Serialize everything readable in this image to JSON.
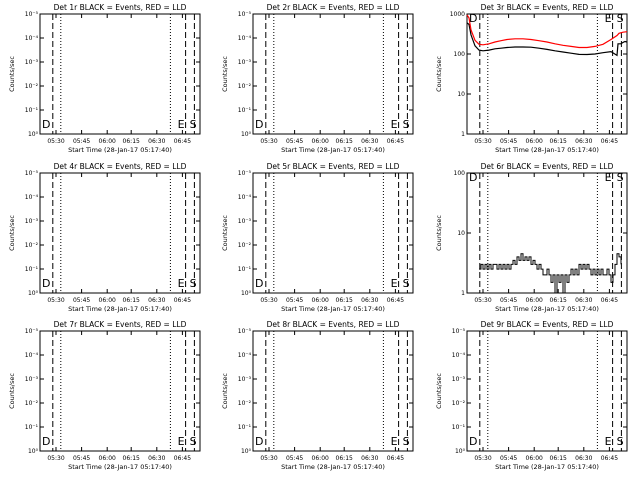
{
  "chart_data": [
    {
      "type": "line",
      "title": "Det 1r BLACK = Events, RED = LLD",
      "xlabel": "Start Time (28-Jan-17 05:17:40)",
      "ylabel": "Counts/sec",
      "yscale": "log",
      "yticks": [
        "10⁰",
        "10⁻¹",
        "10⁻²",
        "10⁻³",
        "10⁻⁴",
        "10⁻⁵"
      ],
      "xticks": [
        "05:30",
        "05:45",
        "06:00",
        "06:15",
        "06:30",
        "06:45"
      ],
      "markers": [
        "D",
        "E",
        "S"
      ],
      "series": []
    },
    {
      "type": "line",
      "title": "Det 2r BLACK = Events, RED = LLD",
      "xlabel": "Start Time (28-Jan-17 05:17:40)",
      "ylabel": "Counts/sec",
      "yscale": "log",
      "yticks": [
        "10⁰",
        "10⁻¹",
        "10⁻²",
        "10⁻³",
        "10⁻⁴",
        "10⁻⁵"
      ],
      "xticks": [
        "05:30",
        "05:45",
        "06:00",
        "06:15",
        "06:30",
        "06:45"
      ],
      "markers": [
        "D",
        "E",
        "S"
      ],
      "series": []
    },
    {
      "type": "line",
      "title": "Det 3r BLACK = Events, RED = LLD",
      "xlabel": "Start Time (28-Jan-17 05:17:40)",
      "ylabel": "Counts/sec",
      "yscale": "log",
      "yticks": [
        "1000",
        "100",
        "10",
        "1"
      ],
      "xticks": [
        "05:30",
        "05:45",
        "06:00",
        "06:15",
        "06:30",
        "06:45"
      ],
      "markers": [
        "D",
        "E",
        "S"
      ],
      "series": [
        {
          "color": "#000000",
          "x": [
            0,
            1,
            2,
            4,
            6,
            8,
            11,
            14,
            17,
            20,
            24,
            28,
            32,
            36,
            40,
            44,
            48,
            52,
            56,
            60,
            64,
            68,
            72,
            75,
            75.5,
            77,
            78,
            79,
            80
          ],
          "y": [
            600,
            550,
            300,
            160,
            125,
            120,
            125,
            135,
            140,
            145,
            150,
            150,
            148,
            140,
            130,
            120,
            112,
            105,
            98,
            97,
            100,
            108,
            115,
            92,
            180,
            180,
            195,
            205,
            200
          ]
        },
        {
          "color": "#ff0000",
          "x": [
            0,
            1,
            2,
            4,
            6,
            8,
            11,
            14,
            17,
            20,
            24,
            28,
            32,
            36,
            40,
            44,
            48,
            52,
            56,
            60,
            64,
            68,
            72,
            75,
            76,
            78,
            80
          ],
          "y": [
            950,
            800,
            400,
            220,
            175,
            170,
            180,
            200,
            215,
            230,
            240,
            240,
            230,
            215,
            200,
            180,
            165,
            155,
            145,
            145,
            155,
            175,
            230,
            290,
            330,
            350,
            360
          ]
        }
      ]
    },
    {
      "type": "line",
      "title": "Det 4r BLACK = Events, RED = LLD",
      "xlabel": "Start Time (28-Jan-17 05:17:40)",
      "ylabel": "Counts/sec",
      "yscale": "log",
      "yticks": [
        "10⁰",
        "10⁻¹",
        "10⁻²",
        "10⁻³",
        "10⁻⁴",
        "10⁻⁵"
      ],
      "xticks": [
        "05:30",
        "05:45",
        "06:00",
        "06:15",
        "06:30",
        "06:45"
      ],
      "markers": [
        "D",
        "E",
        "S"
      ],
      "series": []
    },
    {
      "type": "line",
      "title": "Det 5r BLACK = Events, RED = LLD",
      "xlabel": "Start Time (28-Jan-17 05:17:40)",
      "ylabel": "Counts/sec",
      "yscale": "log",
      "yticks": [
        "10⁰",
        "10⁻¹",
        "10⁻²",
        "10⁻³",
        "10⁻⁴",
        "10⁻⁵"
      ],
      "xticks": [
        "05:30",
        "05:45",
        "06:00",
        "06:15",
        "06:30",
        "06:45"
      ],
      "markers": [
        "D",
        "E",
        "S"
      ],
      "series": []
    },
    {
      "type": "line",
      "title": "Det 6r BLACK = Events, RED = LLD",
      "xlabel": "Start Time (28-Jan-17 05:17:40)",
      "ylabel": "Counts/sec",
      "yscale": "log",
      "yticks": [
        "100",
        "10",
        "1"
      ],
      "xticks": [
        "05:30",
        "05:45",
        "06:00",
        "06:15",
        "06:30",
        "06:45"
      ],
      "markers": [
        "D",
        "E",
        "S"
      ],
      "series": [
        {
          "color": "#000000",
          "x": [
            6,
            7,
            8,
            9,
            10,
            11,
            12,
            13,
            14,
            15,
            16,
            17,
            18,
            19,
            20,
            21,
            22,
            23,
            24,
            25,
            26,
            27,
            28,
            29,
            30,
            31,
            32,
            33,
            34,
            35,
            36,
            37,
            38,
            39,
            40,
            41,
            42,
            43,
            44,
            45,
            46,
            47,
            48,
            49,
            50,
            51,
            52,
            53,
            54,
            55,
            56,
            57,
            58,
            59,
            60,
            61,
            62,
            63,
            64,
            65,
            66,
            67,
            68,
            69,
            70,
            71,
            72,
            73,
            74,
            75,
            76,
            77
          ],
          "y": [
            2.5,
            3,
            2.5,
            3,
            2.5,
            3,
            2.5,
            3,
            3,
            2.5,
            3,
            2.5,
            3,
            2.5,
            3,
            2.5,
            3,
            3.5,
            3,
            4,
            3.5,
            4.5,
            3.5,
            4,
            3.5,
            4,
            3,
            3.5,
            3,
            2.5,
            3,
            2.5,
            2,
            2,
            2.5,
            2,
            1.5,
            2,
            1,
            2,
            1.5,
            2,
            1,
            2,
            1.5,
            2,
            2.5,
            2,
            2.5,
            2,
            3,
            2.5,
            3,
            2.5,
            3,
            2.5,
            2,
            2.5,
            2,
            2.5,
            2,
            2.5,
            2,
            2,
            2.5,
            2,
            1.5,
            2,
            3,
            4.5,
            4,
            3
          ]
        }
      ]
    },
    {
      "type": "line",
      "title": "Det 7r BLACK = Events, RED = LLD",
      "xlabel": "Start Time (28-Jan-17 05:17:40)",
      "ylabel": "Counts/sec",
      "yscale": "log",
      "yticks": [
        "10⁰",
        "10⁻¹",
        "10⁻²",
        "10⁻³",
        "10⁻⁴",
        "10⁻⁵"
      ],
      "xticks": [
        "05:30",
        "05:45",
        "06:00",
        "06:15",
        "06:30",
        "06:45"
      ],
      "markers": [
        "D",
        "E",
        "S"
      ],
      "series": []
    },
    {
      "type": "line",
      "title": "Det 8r BLACK = Events, RED = LLD",
      "xlabel": "Start Time (28-Jan-17 05:17:40)",
      "ylabel": "Counts/sec",
      "yscale": "log",
      "yticks": [
        "10⁰",
        "10⁻¹",
        "10⁻²",
        "10⁻³",
        "10⁻⁴",
        "10⁻⁵"
      ],
      "xticks": [
        "05:30",
        "05:45",
        "06:00",
        "06:15",
        "06:30",
        "06:45"
      ],
      "markers": [
        "D",
        "E",
        "S"
      ],
      "series": []
    },
    {
      "type": "line",
      "title": "Det 9r BLACK = Events, RED = LLD",
      "xlabel": "Start Time (28-Jan-17 05:17:40)",
      "ylabel": "Counts/sec",
      "yscale": "log",
      "yticks": [
        "10⁰",
        "10⁻¹",
        "10⁻²",
        "10⁻³",
        "10⁻⁴",
        "10⁻⁵"
      ],
      "xticks": [
        "05:30",
        "05:45",
        "06:00",
        "06:15",
        "06:30",
        "06:45"
      ],
      "markers": [
        "D",
        "E",
        "S"
      ],
      "series": []
    }
  ]
}
